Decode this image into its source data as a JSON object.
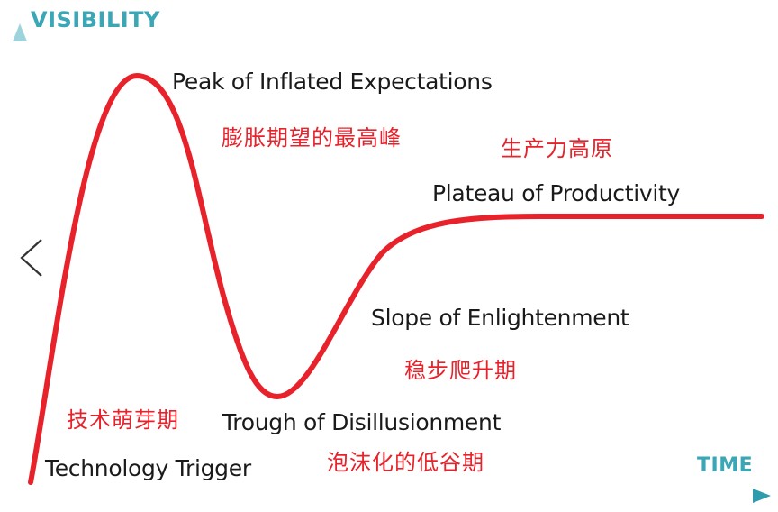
{
  "axes": {
    "y_label": "VISIBILITY",
    "x_label": "TIME"
  },
  "phases": [
    {
      "id": "technology-trigger",
      "name": "Technology Trigger",
      "name_cn": "技术萌芽期"
    },
    {
      "id": "peak",
      "name": "Peak of Inflated Expectations",
      "name_cn": "膨胀期望的最高峰"
    },
    {
      "id": "trough",
      "name": "Trough of Disillusionment",
      "name_cn": "泡沫化的低谷期"
    },
    {
      "id": "slope",
      "name": "Slope of Enlightenment",
      "name_cn": "稳步爬升期"
    },
    {
      "id": "plateau",
      "name": "Plateau of Productivity",
      "name_cn": "生产力高原"
    }
  ],
  "colors": {
    "curve": "#e8222b",
    "axis": "#3aa6b6",
    "cn_text": "#e8222b",
    "en_text": "#1a1a1a"
  },
  "icons": {
    "back": "chevron-left-icon"
  }
}
